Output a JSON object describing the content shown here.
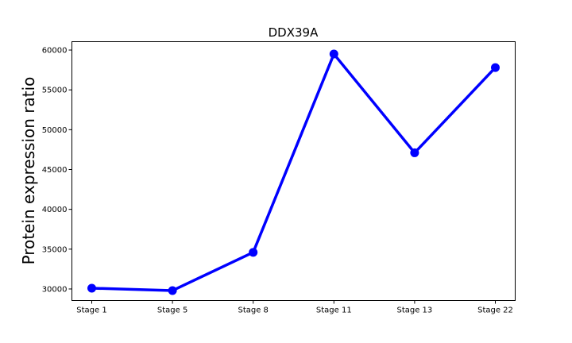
{
  "chart_data": {
    "type": "line",
    "title": "DDX39A",
    "xlabel": "",
    "ylabel": "Protein expression ratio",
    "categories": [
      "Stage 1",
      "Stage 5",
      "Stage 8",
      "Stage 11",
      "Stage 13",
      "Stage 22"
    ],
    "series": [
      {
        "values": [
          30100,
          29800,
          34600,
          59500,
          47100,
          57800
        ],
        "color": "#0000ff"
      }
    ],
    "ylim": [
      28550,
      61050
    ],
    "yticks": [
      30000,
      35000,
      40000,
      45000,
      50000,
      55000,
      60000
    ],
    "grid": false,
    "legend": "none"
  }
}
